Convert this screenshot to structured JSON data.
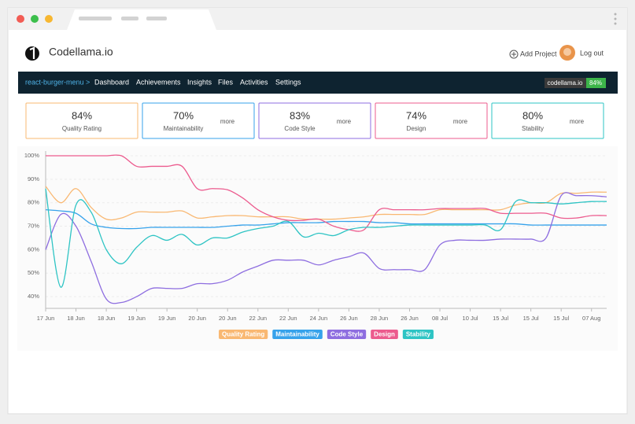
{
  "header": {
    "brand": "Codellama.io",
    "add_project": "Add Project",
    "logout": "Log out"
  },
  "nav": {
    "breadcrumb": "react-burger-menu >",
    "items": [
      "Dashboard",
      "Achievements",
      "Insights",
      "Files",
      "Activities",
      "Settings"
    ],
    "badge": {
      "name": "codellama.io",
      "value": "84%"
    }
  },
  "cards": [
    {
      "value": "84%",
      "label": "Quality Rating"
    },
    {
      "value": "70%",
      "label": "Maintainability",
      "more": "more"
    },
    {
      "value": "83%",
      "label": "Code Style",
      "more": "more"
    },
    {
      "value": "74%",
      "label": "Design",
      "more": "more"
    },
    {
      "value": "80%",
      "label": "Stability",
      "more": "more"
    }
  ],
  "chart_data": {
    "type": "line",
    "categories": [
      "17 Jun",
      null,
      "18 Jun",
      null,
      "18 Jun",
      null,
      "19 Jun",
      null,
      "19 Jun",
      null,
      "20 Jun",
      null,
      "20 Jun",
      null,
      "22 Jun",
      null,
      "22 Jun",
      null,
      "24 Jun",
      null,
      "26 Jun",
      null,
      "28 Jun",
      null,
      "26 Jun",
      null,
      "08 Jul",
      null,
      "10 Jul",
      null,
      "15 Jul",
      null,
      "15 Jul",
      null,
      "15 Jul",
      null,
      "07 Aug",
      null
    ],
    "series": [
      {
        "name": "Quality Rating",
        "color": "#f9b872",
        "values": [
          87,
          80,
          86,
          78,
          73,
          73.5,
          76,
          76,
          76,
          76.5,
          73.5,
          74,
          74.5,
          74.5,
          74,
          74,
          74,
          73,
          73,
          73,
          73.5,
          74,
          75,
          75,
          75,
          75,
          77,
          77,
          77,
          77,
          77,
          79,
          80,
          80,
          84,
          84,
          84.5,
          84.5
        ]
      },
      {
        "name": "Maintainability",
        "color": "#36a2eb",
        "values": [
          77,
          76.5,
          75.5,
          71,
          69.5,
          69,
          69,
          69.5,
          69.5,
          69.5,
          69.5,
          69.5,
          70,
          70.5,
          70.5,
          71,
          71.5,
          71.5,
          71.5,
          72,
          72,
          72,
          71.5,
          71.5,
          71,
          71,
          71,
          71,
          71,
          71,
          71,
          71,
          70.5,
          70.5,
          70.5,
          70.5,
          70.5,
          70.5
        ]
      },
      {
        "name": "Code Style",
        "color": "#8e6ee0",
        "values": [
          60,
          75,
          70,
          55,
          39,
          37.5,
          40,
          43.5,
          43.5,
          43.5,
          45.5,
          45.5,
          47,
          50.5,
          53,
          55.5,
          55.5,
          55.5,
          53.5,
          55.5,
          57,
          58.5,
          52,
          51.5,
          51.5,
          51.5,
          62,
          64,
          64,
          64,
          64.5,
          64.5,
          64.5,
          65,
          83,
          83,
          83,
          82.5
        ]
      },
      {
        "name": "Design",
        "color": "#ec5b8e",
        "values": [
          100,
          100,
          100,
          100,
          100,
          100,
          95.5,
          95.5,
          95.5,
          95.5,
          86,
          86,
          85.5,
          82,
          77,
          74,
          72.5,
          72.5,
          73,
          70,
          68.5,
          68.5,
          77,
          77,
          77,
          77,
          77.5,
          77.5,
          77.5,
          77.5,
          75.5,
          75.5,
          75.5,
          75.5,
          73.5,
          73.5,
          74.5,
          74.5
        ]
      },
      {
        "name": "Stability",
        "color": "#2ec4c4",
        "values": [
          86,
          44,
          79,
          76,
          60,
          54,
          61,
          66,
          64,
          66.5,
          62,
          65,
          65,
          67.5,
          69,
          70,
          72,
          65.5,
          67,
          66,
          68.5,
          69.5,
          69.5,
          70,
          70.5,
          70.5,
          70.5,
          70.5,
          70.5,
          70.5,
          68.5,
          80.5,
          80,
          80,
          79.5,
          80,
          80.5,
          80.5
        ]
      }
    ],
    "ylim": [
      35,
      100
    ],
    "yticks": [
      {
        "value": 40,
        "label": "40%"
      },
      {
        "value": 50,
        "label": "50%"
      },
      {
        "value": 60,
        "label": "60%"
      },
      {
        "value": 70,
        "label": "70%"
      },
      {
        "value": 80,
        "label": "80%"
      },
      {
        "value": 90,
        "label": "90%"
      },
      {
        "value": 100,
        "label": "100%"
      }
    ],
    "grid": true,
    "legend": "bottom"
  }
}
